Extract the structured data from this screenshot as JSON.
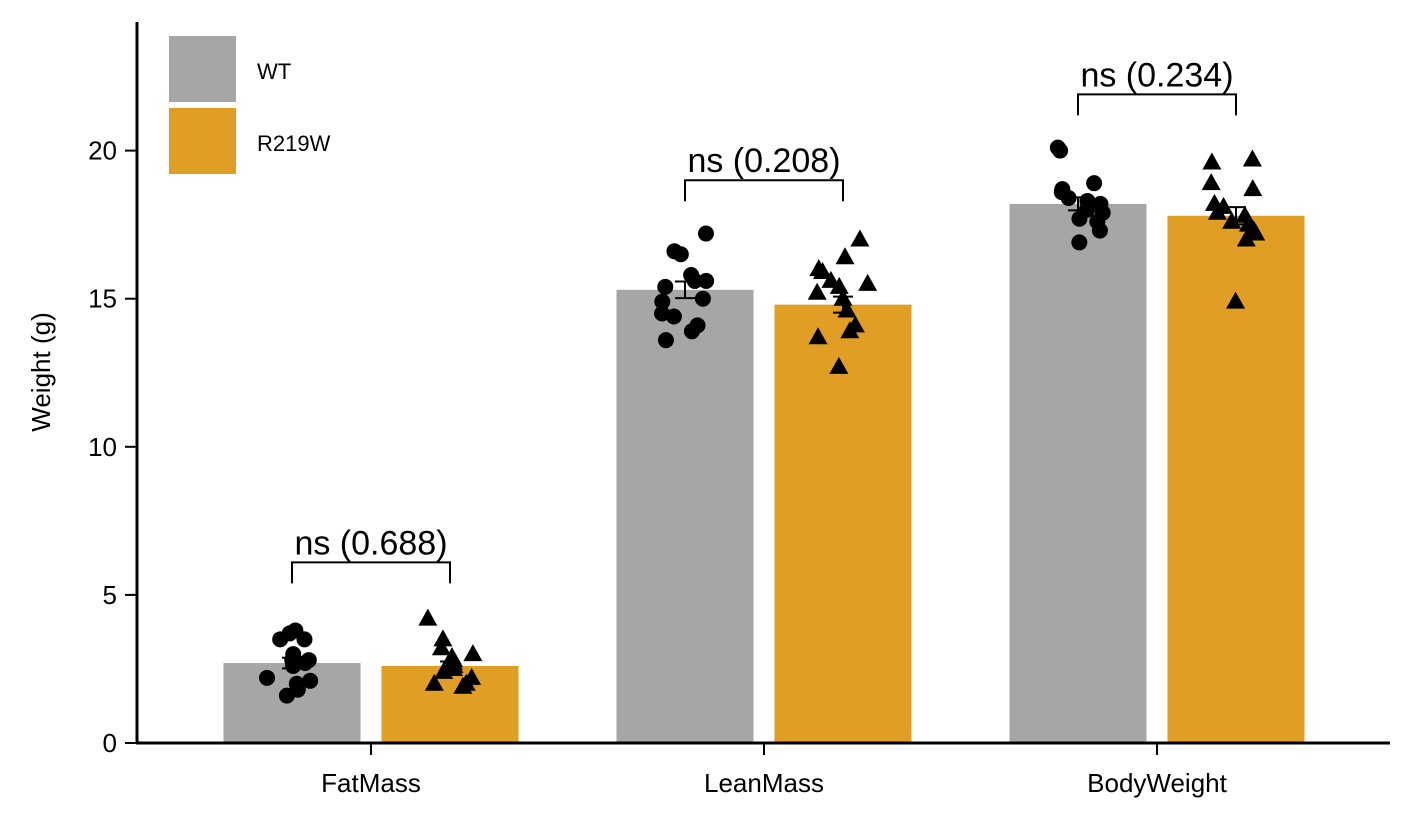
{
  "chart_data": {
    "type": "bar",
    "title": "",
    "xlabel": "",
    "ylabel": "Weight (g)",
    "ylim": [
      0,
      24.3
    ],
    "yticks": [
      0,
      5,
      10,
      15,
      20
    ],
    "grid": false,
    "legend_position": "top-left",
    "categories": [
      "FatMass",
      "LeanMass",
      "BodyWeight"
    ],
    "series": [
      {
        "name": "WT",
        "color": "#a6a6a6",
        "marker": "circle",
        "values": [
          2.7,
          15.3,
          18.2
        ],
        "errors": [
          0.18,
          0.28,
          0.22
        ],
        "points": [
          [
            3.5,
            3.8,
            3.7,
            3.5,
            2.8,
            2.7,
            2.8,
            3.0,
            2.6,
            2.2,
            2.0,
            1.8,
            1.6,
            2.1
          ],
          [
            16.5,
            16.6,
            17.2,
            15.8,
            15.6,
            15.6,
            15.4,
            15.0,
            14.5,
            14.4,
            14.1,
            13.9,
            13.6,
            14.9
          ],
          [
            20.0,
            20.1,
            18.9,
            18.7,
            18.6,
            18.3,
            18.2,
            18.0,
            17.9,
            17.6,
            17.7,
            17.3,
            16.9,
            18.4
          ]
        ]
      },
      {
        "name": "R219W",
        "color": "#e09e24",
        "marker": "triangle",
        "values": [
          2.6,
          14.8,
          17.8
        ],
        "errors": [
          0.15,
          0.27,
          0.29
        ],
        "points": [
          [
            4.2,
            3.5,
            3.2,
            3.0,
            2.9,
            2.8,
            2.7,
            2.6,
            2.5,
            2.4,
            2.2,
            2.0,
            2.0,
            1.9
          ],
          [
            17.0,
            16.4,
            16.0,
            15.9,
            15.6,
            15.5,
            15.4,
            15.2,
            15.0,
            14.6,
            14.1,
            13.9,
            13.7,
            12.7
          ],
          [
            19.7,
            19.6,
            18.9,
            18.7,
            18.2,
            18.1,
            17.9,
            17.8,
            17.6,
            17.5,
            17.3,
            17.0,
            17.2,
            14.9
          ]
        ]
      }
    ],
    "annotations": [
      {
        "category": "FatMass",
        "text": "ns (0.688)",
        "y": 6.1
      },
      {
        "category": "LeanMass",
        "text": "ns (0.208)",
        "y": 19.0
      },
      {
        "category": "BodyWeight",
        "text": "ns (0.234)",
        "y": 21.9
      }
    ]
  }
}
